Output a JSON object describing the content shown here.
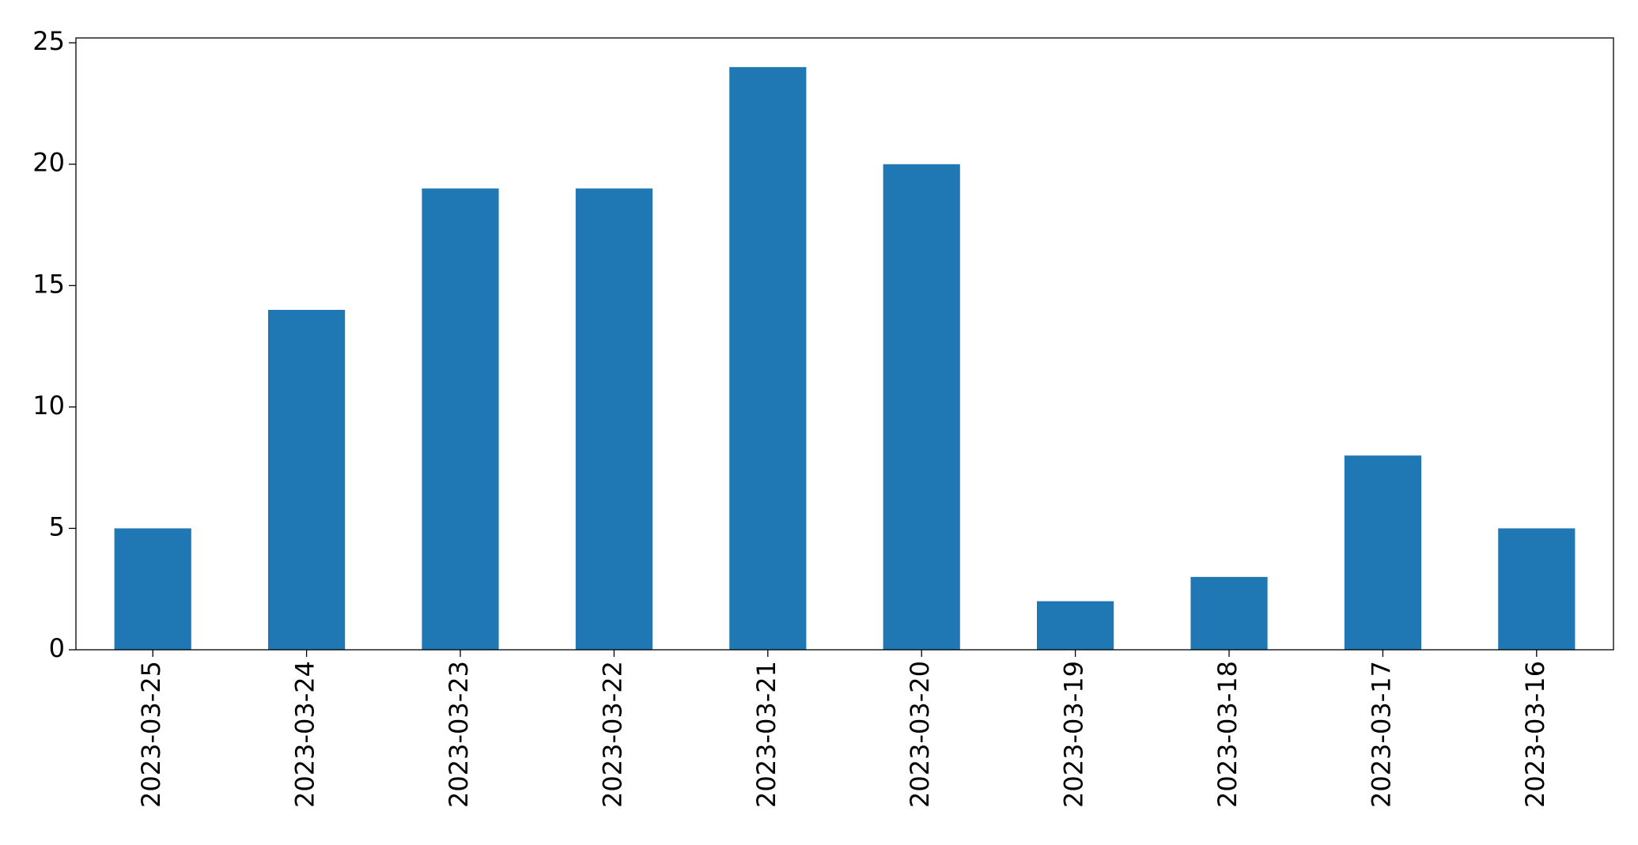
{
  "chart_data": {
    "type": "bar",
    "categories": [
      "2023-03-25",
      "2023-03-24",
      "2023-03-23",
      "2023-03-22",
      "2023-03-21",
      "2023-03-20",
      "2023-03-19",
      "2023-03-18",
      "2023-03-17",
      "2023-03-16"
    ],
    "values": [
      5,
      14,
      19,
      19,
      24,
      20,
      2,
      3,
      8,
      5
    ],
    "color": "#1f77b4",
    "ylim": [
      0,
      25.2
    ],
    "yticks": [
      0,
      5,
      10,
      15,
      20,
      25
    ],
    "grid": false
  }
}
